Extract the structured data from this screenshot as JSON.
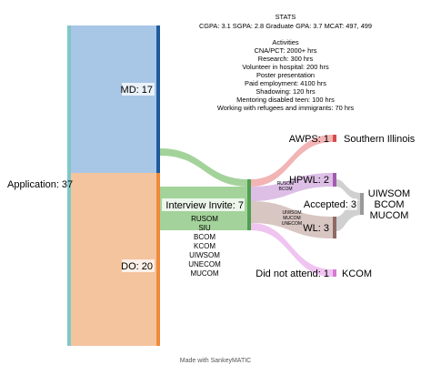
{
  "stats": {
    "heading": "STATS",
    "scores": "CGPA: 3.1 SGPA: 2.8 Graduate GPA: 3.7 MCAT: 497, 499",
    "activities_heading": "Activities",
    "activities": [
      "CNA/PCT: 2000+ hrs",
      "Research: 300 hrs",
      "Volunteer in hospital: 200 hrs",
      "Poster presentation",
      "Paid employment: 4100 hrs",
      "Shadowing: 120 hrs",
      "Mentoring disabled teen: 100 hrs",
      "Working with refugees and immigrants: 70 hrs"
    ]
  },
  "nodes": {
    "application": "Application: 37",
    "md": "MD: 17",
    "do": "DO: 20",
    "interview": "Interview Invite: 7",
    "awps": "AWPS: 1",
    "hpwl": "HPWL: 2",
    "accepted": "Accepted: 3",
    "wl": "WL: 3",
    "did_not_attend": "Did not attend: 1"
  },
  "annotations": {
    "southern_illinois": "Southern Illinois",
    "accepted_schools": [
      "UIWSOM",
      "BCOM",
      "MUCOM"
    ],
    "kcom": "KCOM",
    "interview_schools": [
      "RUSOM",
      "SIU",
      "BCOM",
      "KCOM",
      "UIWSOM",
      "UNECOM",
      "MUCOM"
    ],
    "hpwl_schools": [
      "RUSOM",
      "BCOM"
    ],
    "wl_schools": [
      "UIWSOM",
      "MUCOM",
      "UNECOM"
    ]
  },
  "footer": "Made with SankeyMATIC",
  "colors": {
    "application": "#7fc8c8",
    "md": "#1f5a9e",
    "md_flow": "#a8c6e6",
    "do": "#f08a3a",
    "do_flow": "#f4c49e",
    "interview": "#4f9f4f",
    "interview_flow": "#a3d39a",
    "awps": "#d44c4c",
    "hpwl": "#a35ab3",
    "accepted": "#999999",
    "wl": "#8f6a62",
    "dna": "#d67ad6"
  }
}
